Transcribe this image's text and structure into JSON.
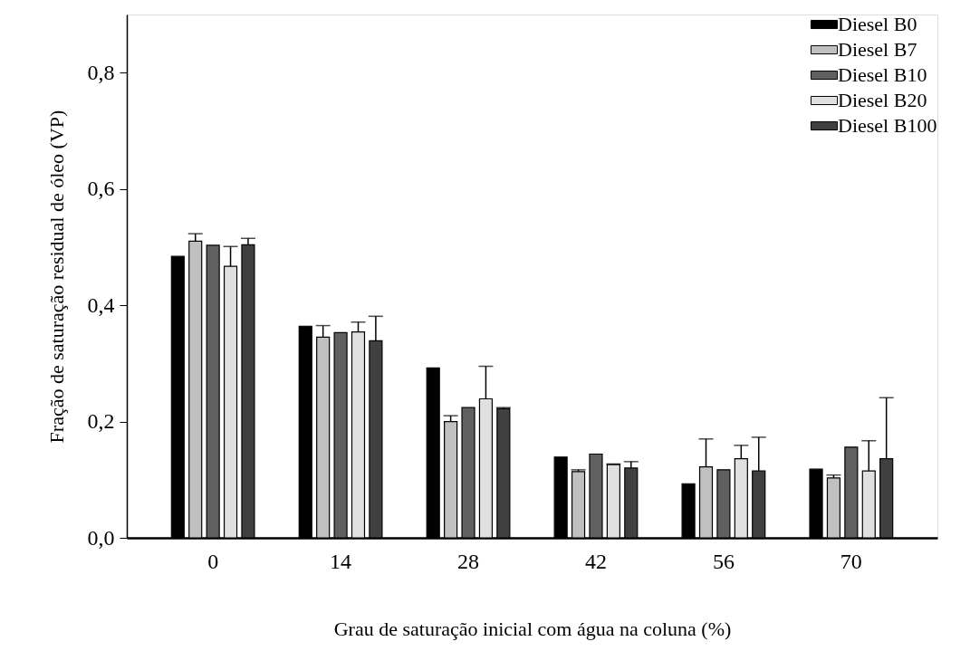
{
  "chart_data": {
    "type": "bar",
    "xlabel": "Grau de saturação inicial com água na coluna (%)",
    "ylabel": "Fração de saturação residual de óleo (VP)",
    "categories": [
      "0",
      "14",
      "28",
      "42",
      "56",
      "70"
    ],
    "ylim": [
      0,
      0.9
    ],
    "yticks": [
      {
        "value": 0,
        "label": "0,0"
      },
      {
        "value": 0.2,
        "label": "0,2"
      },
      {
        "value": 0.4,
        "label": "0,4"
      },
      {
        "value": 0.6,
        "label": "0,6"
      },
      {
        "value": 0.8,
        "label": "0,8"
      }
    ],
    "grid": false,
    "legend": "top right",
    "series": [
      {
        "name": "Diesel B0",
        "color": "#000000",
        "values": [
          0.484,
          0.364,
          0.292,
          0.139,
          0.093,
          0.118
        ]
      },
      {
        "name": "Diesel B7",
        "color": "#c0c0c0",
        "values": [
          0.51,
          0.345,
          0.2,
          0.114,
          0.122,
          0.103
        ],
        "errors": [
          [
            0.51,
            0.523
          ],
          [
            0.345,
            0.365
          ],
          [
            0.2,
            0.21
          ],
          [
            0.114,
            0.117
          ],
          [
            0.122,
            0.17
          ],
          [
            0.103,
            0.108
          ]
        ]
      },
      {
        "name": "Diesel B10",
        "color": "#606060",
        "values": [
          0.503,
          0.353,
          0.224,
          0.144,
          0.117,
          0.156
        ]
      },
      {
        "name": "Diesel B20",
        "color": "#e0e0e0",
        "values": [
          0.467,
          0.354,
          0.239,
          0.126,
          0.136,
          0.115
        ],
        "errors": [
          [
            0.467,
            0.501
          ],
          [
            0.354,
            0.371
          ],
          [
            0.239,
            0.295
          ],
          [
            0.126,
            0.127
          ],
          [
            0.136,
            0.159
          ],
          [
            0.115,
            0.167
          ]
        ]
      },
      {
        "name": "Diesel B100",
        "color": "#404040",
        "values": [
          0.504,
          0.339,
          0.222,
          0.12,
          0.115,
          0.136
        ],
        "errors": [
          [
            0.504,
            0.515
          ],
          [
            0.339,
            0.381
          ],
          [
            0.222,
            0.224
          ],
          [
            0.12,
            0.131
          ],
          [
            0.115,
            0.173
          ],
          [
            0.136,
            0.241
          ]
        ]
      }
    ]
  }
}
